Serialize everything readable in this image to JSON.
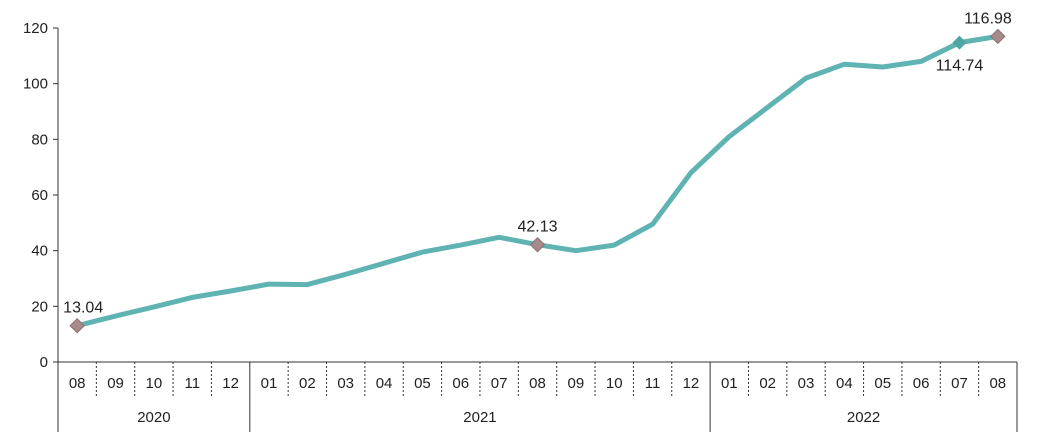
{
  "colors": {
    "line": "#5fb3b3",
    "highlight_marker": "#a88a8a",
    "end_marker": "#4fa6a6",
    "axis": "#333333"
  },
  "chart_data": {
    "type": "line",
    "title": "",
    "xlabel": "",
    "ylabel": "",
    "ylim": [
      0,
      120
    ],
    "yticks": [
      0,
      20,
      40,
      60,
      80,
      100,
      120
    ],
    "grid": false,
    "categories": [
      "08",
      "09",
      "10",
      "11",
      "12",
      "01",
      "02",
      "03",
      "04",
      "05",
      "06",
      "07",
      "08",
      "09",
      "10",
      "11",
      "12",
      "01",
      "02",
      "03",
      "04",
      "05",
      "06",
      "07",
      "08"
    ],
    "years": [
      {
        "label": "2020",
        "start": 0,
        "end": 4
      },
      {
        "label": "2021",
        "start": 5,
        "end": 16
      },
      {
        "label": "2022",
        "start": 17,
        "end": 24
      }
    ],
    "series": [
      {
        "values": [
          13.04,
          16.5,
          19.8,
          23.2,
          25.5,
          28.0,
          27.8,
          31.5,
          35.5,
          39.5,
          42.0,
          44.8,
          42.13,
          40.0,
          42.0,
          49.5,
          68.0,
          81.0,
          91.5,
          102.0,
          107.0,
          106.0,
          108.0,
          114.74,
          116.98
        ]
      }
    ],
    "annotations": [
      {
        "index": 0,
        "text": "13.04",
        "marker": "diamond",
        "placement": "above"
      },
      {
        "index": 12,
        "text": "42.13",
        "marker": "diamond",
        "placement": "above"
      },
      {
        "index": 23,
        "text": "114.74",
        "marker": "diamond-teal",
        "placement": "below"
      },
      {
        "index": 24,
        "text": "116.98",
        "marker": "diamond",
        "placement": "above"
      }
    ]
  }
}
